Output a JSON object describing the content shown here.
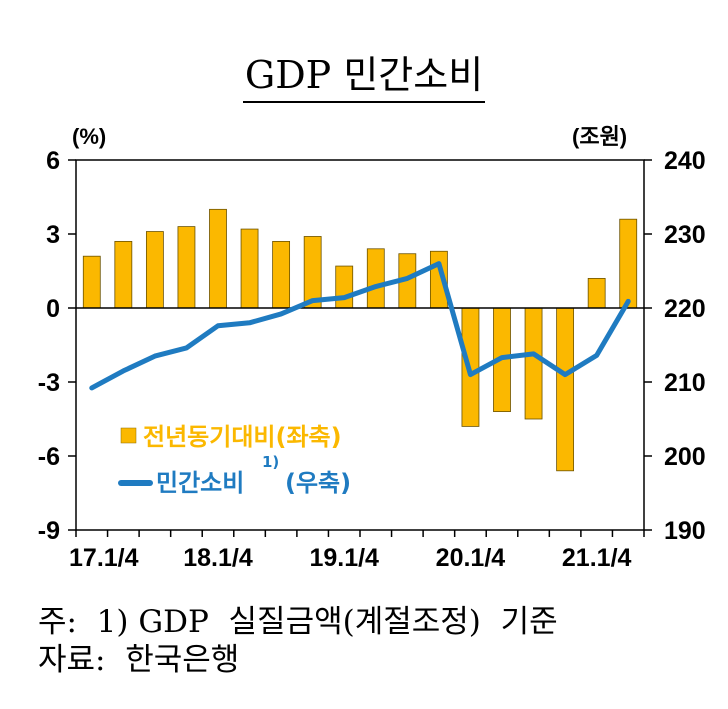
{
  "chart_data": {
    "type": "bar",
    "title": "GDP 민간소비",
    "left_unit": "(%)",
    "right_unit": "(조원)",
    "left_ylim": [
      -9,
      6
    ],
    "left_ticks": [
      "6",
      "3",
      "0",
      "-3",
      "-6",
      "-9"
    ],
    "right_ylim": [
      190,
      240
    ],
    "right_ticks": [
      "240",
      "230",
      "220",
      "210",
      "200",
      "190"
    ],
    "x_tick_labels": [
      "17.1/4",
      "18.1/4",
      "19.1/4",
      "20.1/4",
      "21.1/4"
    ],
    "quarters": [
      "17.1/4",
      "17.2/4",
      "17.3/4",
      "17.4/4",
      "18.1/4",
      "18.2/4",
      "18.3/4",
      "18.4/4",
      "19.1/4",
      "19.2/4",
      "19.3/4",
      "19.4/4",
      "20.1/4",
      "20.2/4",
      "20.3/4",
      "20.4/4",
      "21.1/4",
      "21.2/4"
    ],
    "series": [
      {
        "name": "전년동기대비(좌축)",
        "kind": "bar",
        "axis": "left",
        "color": "#FBB800",
        "values": [
          2.1,
          2.7,
          3.1,
          3.3,
          4.0,
          3.2,
          2.7,
          2.9,
          1.7,
          2.4,
          2.2,
          2.3,
          -4.8,
          -4.2,
          -4.5,
          -6.6,
          1.2,
          3.6
        ]
      },
      {
        "name": "민간소비",
        "name_sup": "1)",
        "name_suffix": "(우축)",
        "kind": "line",
        "axis": "right",
        "color": "#1F7BC1",
        "values": [
          209.2,
          211.5,
          213.5,
          214.6,
          217.6,
          218.0,
          219.2,
          221.0,
          221.4,
          222.9,
          224.0,
          226.0,
          211.0,
          213.3,
          213.8,
          211.0,
          213.6,
          220.9
        ]
      }
    ],
    "grid": false,
    "legend": "middle-left, inside plot"
  },
  "footnote": "주:  1) GDP  실질금액(계절조정)  기준",
  "source": "자료:  한국은행"
}
